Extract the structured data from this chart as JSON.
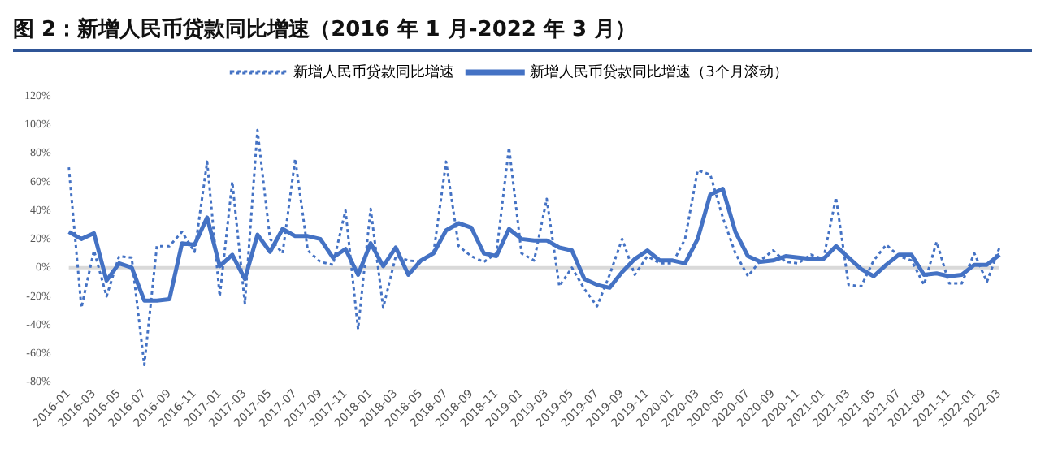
{
  "chart_data": {
    "type": "line",
    "title": "图 2：新增人民币贷款同比增速（2016 年 1 月-2022 年 3 月）",
    "categories": [
      "2016-01",
      null,
      "2016-03",
      null,
      "2016-05",
      null,
      "2016-07",
      null,
      "2016-09",
      null,
      "2016-11",
      null,
      "2017-01",
      null,
      "2017-03",
      null,
      "2017-05",
      null,
      "2017-07",
      null,
      "2017-09",
      null,
      "2017-11",
      null,
      "2018-01",
      null,
      "2018-03",
      null,
      "2018-05",
      null,
      "2018-07",
      null,
      "2018-09",
      null,
      "2018-11",
      null,
      "2019-01",
      null,
      "2019-03",
      null,
      "2019-05",
      null,
      "2019-07",
      null,
      "2019-09",
      null,
      "2019-11",
      null,
      "2020-01",
      null,
      "2020-03",
      null,
      "2020-05",
      null,
      "2020-07",
      null,
      "2020-09",
      null,
      "2020-11",
      null,
      "2021-01",
      null,
      "2021-03",
      null,
      "2021-05",
      null,
      "2021-07",
      null,
      "2021-09",
      null,
      "2021-11",
      null,
      "2022-01",
      null,
      "2022-03"
    ],
    "series": [
      {
        "name": "新增人民币贷款同比增速",
        "color": "#4472c4",
        "line_style": "dotted",
        "values": [
          70,
          -28,
          12,
          -20,
          8,
          7,
          -68,
          15,
          15,
          25,
          11,
          74,
          -20,
          60,
          -25,
          96,
          20,
          10,
          76,
          12,
          4,
          2,
          40,
          -43,
          41,
          -28,
          8,
          5,
          4,
          10,
          74,
          15,
          8,
          4,
          10,
          84,
          10,
          5,
          48,
          -13,
          0,
          -15,
          -27,
          -5,
          20,
          -5,
          8,
          3,
          3,
          20,
          68,
          65,
          35,
          10,
          -6,
          5,
          12,
          4,
          3,
          9,
          6,
          49,
          -12,
          -13,
          5,
          16,
          8,
          5,
          -12,
          18,
          -11,
          -11,
          10,
          -10,
          14
        ]
      },
      {
        "name": "新增人民币贷款同比增速（3个月滚动）",
        "color": "#4472c4",
        "line_style": "solid",
        "values": [
          25,
          20,
          24,
          -9,
          3,
          0,
          -23,
          -23,
          -22,
          17,
          16,
          35,
          1,
          9,
          -8,
          23,
          11,
          27,
          22,
          22,
          20,
          7,
          13,
          -5,
          17,
          1,
          14,
          -5,
          5,
          10,
          26,
          31,
          28,
          10,
          8,
          27,
          20,
          19,
          19,
          14,
          12,
          -8,
          -12,
          -14,
          -3,
          6,
          12,
          5,
          5,
          3,
          20,
          51,
          55,
          25,
          8,
          4,
          5,
          8,
          7,
          6,
          6,
          15,
          7,
          -1,
          -6,
          2,
          9,
          9,
          -5,
          -4,
          -6,
          -5,
          2,
          2,
          9
        ]
      }
    ],
    "ylim": [
      -80,
      120
    ],
    "yticks": [
      {
        "value": -80,
        "label": "-80%"
      },
      {
        "value": -60,
        "label": "-60%"
      },
      {
        "value": -40,
        "label": "-40%"
      },
      {
        "value": -20,
        "label": "-20%"
      },
      {
        "value": 0,
        "label": "0%"
      },
      {
        "value": 20,
        "label": "20%"
      },
      {
        "value": 40,
        "label": "40%"
      },
      {
        "value": 60,
        "label": "60%"
      },
      {
        "value": 80,
        "label": "80%"
      },
      {
        "value": 100,
        "label": "100%"
      },
      {
        "value": 120,
        "label": "120%"
      }
    ],
    "ref_lines": [
      {
        "axis": "y",
        "value": 0,
        "color": "#d9d9d9"
      }
    ],
    "grid": false,
    "legend": "top",
    "marker": "none"
  }
}
